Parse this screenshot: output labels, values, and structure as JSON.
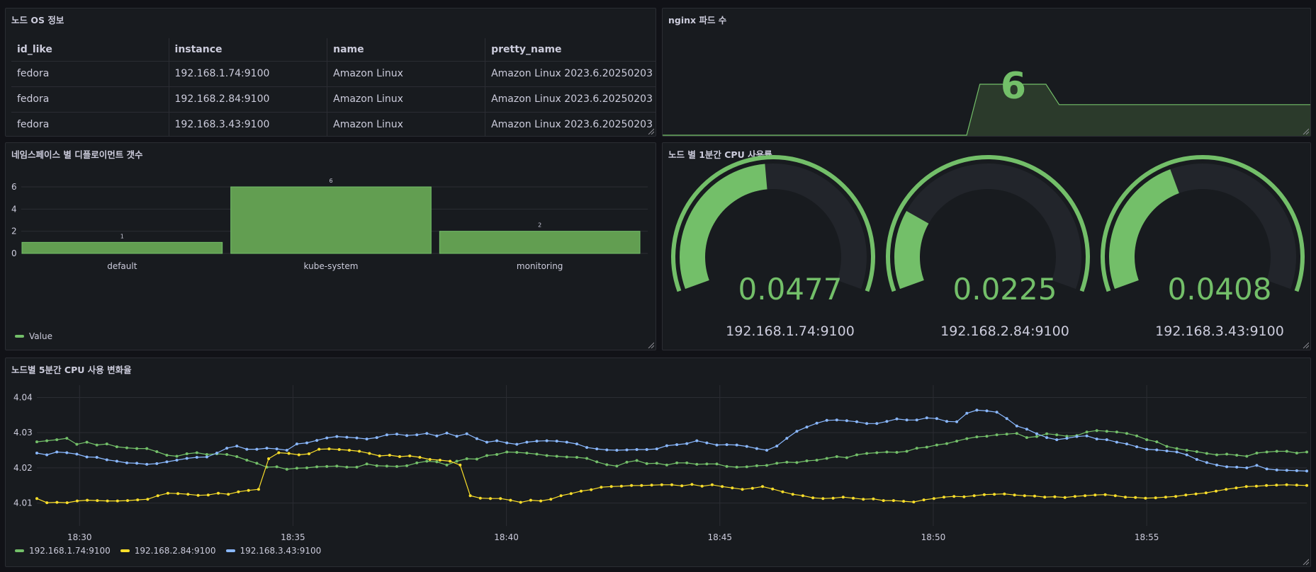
{
  "panels": {
    "os_info": {
      "title": "노드 OS 정보",
      "columns": [
        "id_like",
        "instance",
        "name",
        "pretty_name"
      ],
      "rows": [
        [
          "fedora",
          "192.168.1.74:9100",
          "Amazon Linux",
          "Amazon Linux 2023.6.20250203"
        ],
        [
          "fedora",
          "192.168.2.84:9100",
          "Amazon Linux",
          "Amazon Linux 2023.6.20250203"
        ],
        [
          "fedora",
          "192.168.3.43:9100",
          "Amazon Linux",
          "Amazon Linux 2023.6.20250203"
        ]
      ]
    },
    "nginx": {
      "title": "nginx 파드 수",
      "value": "6",
      "sparkline": [
        1,
        1,
        1,
        1,
        1,
        1,
        1,
        1,
        1,
        1,
        1,
        1,
        1,
        1,
        1,
        1,
        1,
        1,
        1,
        1,
        1,
        1,
        1,
        1,
        6,
        6,
        6,
        6,
        6,
        6,
        4,
        4,
        4,
        4,
        4,
        4,
        4,
        4,
        4,
        4,
        4,
        4,
        4,
        4,
        4,
        4,
        4,
        4,
        4,
        4
      ]
    },
    "deployments": {
      "title": "네임스페이스 별 디플로이먼트 갯수",
      "legend": "Value"
    },
    "cpu_1m": {
      "title": "노드 별 1분간 CPU 사용률",
      "gauges": [
        {
          "value": "0.0477",
          "label": "192.168.1.74:9100"
        },
        {
          "value": "0.0225",
          "label": "192.168.2.84:9100"
        },
        {
          "value": "0.0408",
          "label": "192.168.3.43:9100"
        }
      ]
    },
    "cpu_5m": {
      "title": "노드별 5분간 CPU 사용 변화율"
    }
  },
  "colors": {
    "green": "#73bf69",
    "yellow": "#fade2a",
    "blue": "#8ab8ff",
    "panel_bg": "#181b1f",
    "page_bg": "#111217"
  },
  "chart_data": [
    {
      "type": "bar",
      "categories": [
        "default",
        "kube-system",
        "monitoring"
      ],
      "series": [
        {
          "name": "Value",
          "values": [
            1,
            6,
            2
          ]
        }
      ],
      "ylim": [
        0,
        6
      ],
      "yticks": [
        0,
        2,
        4,
        6
      ],
      "legend": "bottom-left",
      "grid": true
    },
    {
      "type": "line",
      "xticks": [
        "18:30",
        "18:35",
        "18:40",
        "18:45",
        "18:50",
        "18:55"
      ],
      "yticks": [
        "4.01",
        "4.02",
        "4.03",
        "4.04"
      ],
      "ylim": [
        4.0055,
        4.0415
      ],
      "legend": "bottom-left",
      "grid": true,
      "series": [
        {
          "name": "192.168.1.74:9100",
          "color": "#73bf69",
          "values": [
            4.0274,
            4.0277,
            4.028,
            4.0284,
            4.0267,
            4.0273,
            4.0265,
            4.0268,
            4.026,
            4.0257,
            4.0255,
            4.0255,
            4.0246,
            4.0236,
            4.0233,
            4.024,
            4.0243,
            4.0238,
            4.024,
            4.0238,
            4.0232,
            4.0222,
            4.0213,
            4.0202,
            4.0203,
            4.0196,
            4.0199,
            4.02,
            4.0203,
            4.0204,
            4.0205,
            4.0202,
            4.0202,
            4.0211,
            4.0206,
            4.0205,
            4.0204,
            4.0206,
            4.0214,
            4.0219,
            4.0217,
            4.0208,
            4.0219,
            4.0226,
            4.0225,
            4.0235,
            4.0238,
            4.0245,
            4.0244,
            4.0242,
            4.0239,
            4.0235,
            4.0233,
            4.0231,
            4.023,
            4.0227,
            4.0217,
            4.0209,
            4.0205,
            4.0216,
            4.0221,
            4.0212,
            4.0213,
            4.0208,
            4.0214,
            4.0214,
            4.021,
            4.0211,
            4.0211,
            4.0204,
            4.0202,
            4.0203,
            4.0206,
            4.0207,
            4.0213,
            4.0216,
            4.0215,
            4.022,
            4.0222,
            4.0227,
            4.0232,
            4.0229,
            4.0237,
            4.0241,
            4.0243,
            4.0245,
            4.0244,
            4.0247,
            4.0256,
            4.0259,
            4.0265,
            4.0269,
            4.0276,
            4.0283,
            4.0288,
            4.029,
            4.0294,
            4.0296,
            4.0298,
            4.0286,
            4.0289,
            4.0297,
            4.0294,
            4.029,
            4.0292,
            4.0302,
            4.0306,
            4.0304,
            4.0302,
            4.0298,
            4.0291,
            4.028,
            4.0274,
            4.0261,
            4.0255,
            4.025,
            4.0246,
            4.0241,
            4.0237,
            4.0239,
            4.0236,
            4.0233,
            4.0242,
            4.0245,
            4.0247,
            4.0247,
            4.0242,
            4.0245
          ]
        },
        {
          "name": "192.168.2.84:9100",
          "color": "#fade2a",
          "values": [
            4.0113,
            4.0101,
            4.0102,
            4.0101,
            4.0106,
            4.0108,
            4.0107,
            4.0106,
            4.0106,
            4.0107,
            4.0109,
            4.0111,
            4.0121,
            4.0128,
            4.0127,
            4.0125,
            4.0122,
            4.0123,
            4.0128,
            4.0125,
            4.0132,
            4.0136,
            4.0139,
            4.0226,
            4.0243,
            4.0241,
            4.0237,
            4.024,
            4.0253,
            4.0254,
            4.0252,
            4.025,
            4.0247,
            4.0241,
            4.0234,
            4.0236,
            4.0232,
            4.0234,
            4.023,
            4.0224,
            4.0222,
            4.0219,
            4.0208,
            4.0121,
            4.0114,
            4.0113,
            4.0113,
            4.0108,
            4.0102,
            4.0108,
            4.0106,
            4.0111,
            4.0121,
            4.0127,
            4.0134,
            4.0138,
            4.0145,
            4.0147,
            4.0148,
            4.015,
            4.015,
            4.0151,
            4.0152,
            4.0152,
            4.0149,
            4.0153,
            4.0148,
            4.0152,
            4.0147,
            4.0143,
            4.0139,
            4.0142,
            4.0147,
            4.014,
            4.0132,
            4.0125,
            4.0121,
            4.0115,
            4.0113,
            4.0114,
            4.0117,
            4.0114,
            4.0111,
            4.0112,
            4.0107,
            4.0107,
            4.0105,
            4.0103,
            4.0109,
            4.0113,
            4.0117,
            4.0119,
            4.0118,
            4.0121,
            4.0124,
            4.0125,
            4.0126,
            4.0123,
            4.0121,
            4.012,
            4.0117,
            4.0118,
            4.0116,
            4.0119,
            4.0121,
            4.0123,
            4.0124,
            4.0121,
            4.0117,
            4.0116,
            4.0114,
            4.0115,
            4.0117,
            4.0119,
            4.0123,
            4.0126,
            4.0129,
            4.0134,
            4.0139,
            4.0143,
            4.0147,
            4.0148,
            4.015,
            4.0151,
            4.0152,
            4.0151,
            4.015
          ]
        },
        {
          "name": "192.168.3.43:9100",
          "color": "#8ab8ff",
          "values": [
            4.0242,
            4.0237,
            4.0245,
            4.0243,
            4.0239,
            4.0231,
            4.023,
            4.0223,
            4.0219,
            4.0214,
            4.0213,
            4.021,
            4.0212,
            4.0217,
            4.0222,
            4.0227,
            4.023,
            4.0231,
            4.0242,
            4.0256,
            4.0262,
            4.0253,
            4.0253,
            4.0256,
            4.0254,
            4.025,
            4.0268,
            4.0271,
            4.0278,
            4.0285,
            4.0289,
            4.0287,
            4.0285,
            4.0282,
            4.0286,
            4.0294,
            4.0296,
            4.0292,
            4.0294,
            4.0298,
            4.0291,
            4.0299,
            4.029,
            4.0297,
            4.0283,
            4.0273,
            4.0277,
            4.0271,
            4.0267,
            4.0273,
            4.0276,
            4.0277,
            4.0276,
            4.0273,
            4.0268,
            4.0258,
            4.0254,
            4.0251,
            4.025,
            4.0251,
            4.0252,
            4.0252,
            4.0254,
            4.0263,
            4.0266,
            4.0269,
            4.0277,
            4.0271,
            4.0265,
            4.0266,
            4.0265,
            4.0261,
            4.0255,
            4.025,
            4.0262,
            4.0284,
            4.0304,
            4.0316,
            4.0327,
            4.0335,
            4.0336,
            4.0334,
            4.0331,
            4.0326,
            4.0326,
            4.0332,
            4.0339,
            4.0336,
            4.0336,
            4.0342,
            4.034,
            4.0332,
            4.0331,
            4.0355,
            4.0364,
            4.0362,
            4.0358,
            4.034,
            4.0319,
            4.031,
            4.0297,
            4.0286,
            4.028,
            4.0284,
            4.0289,
            4.0291,
            4.0282,
            4.028,
            4.0273,
            4.0268,
            4.026,
            4.0253,
            4.0251,
            4.0248,
            4.0245,
            4.0237,
            4.0224,
            4.0215,
            4.0208,
            4.0203,
            4.0202,
            4.02,
            4.0207,
            4.0197,
            4.0194,
            4.0193,
            4.0192,
            4.0191
          ]
        }
      ]
    }
  ]
}
